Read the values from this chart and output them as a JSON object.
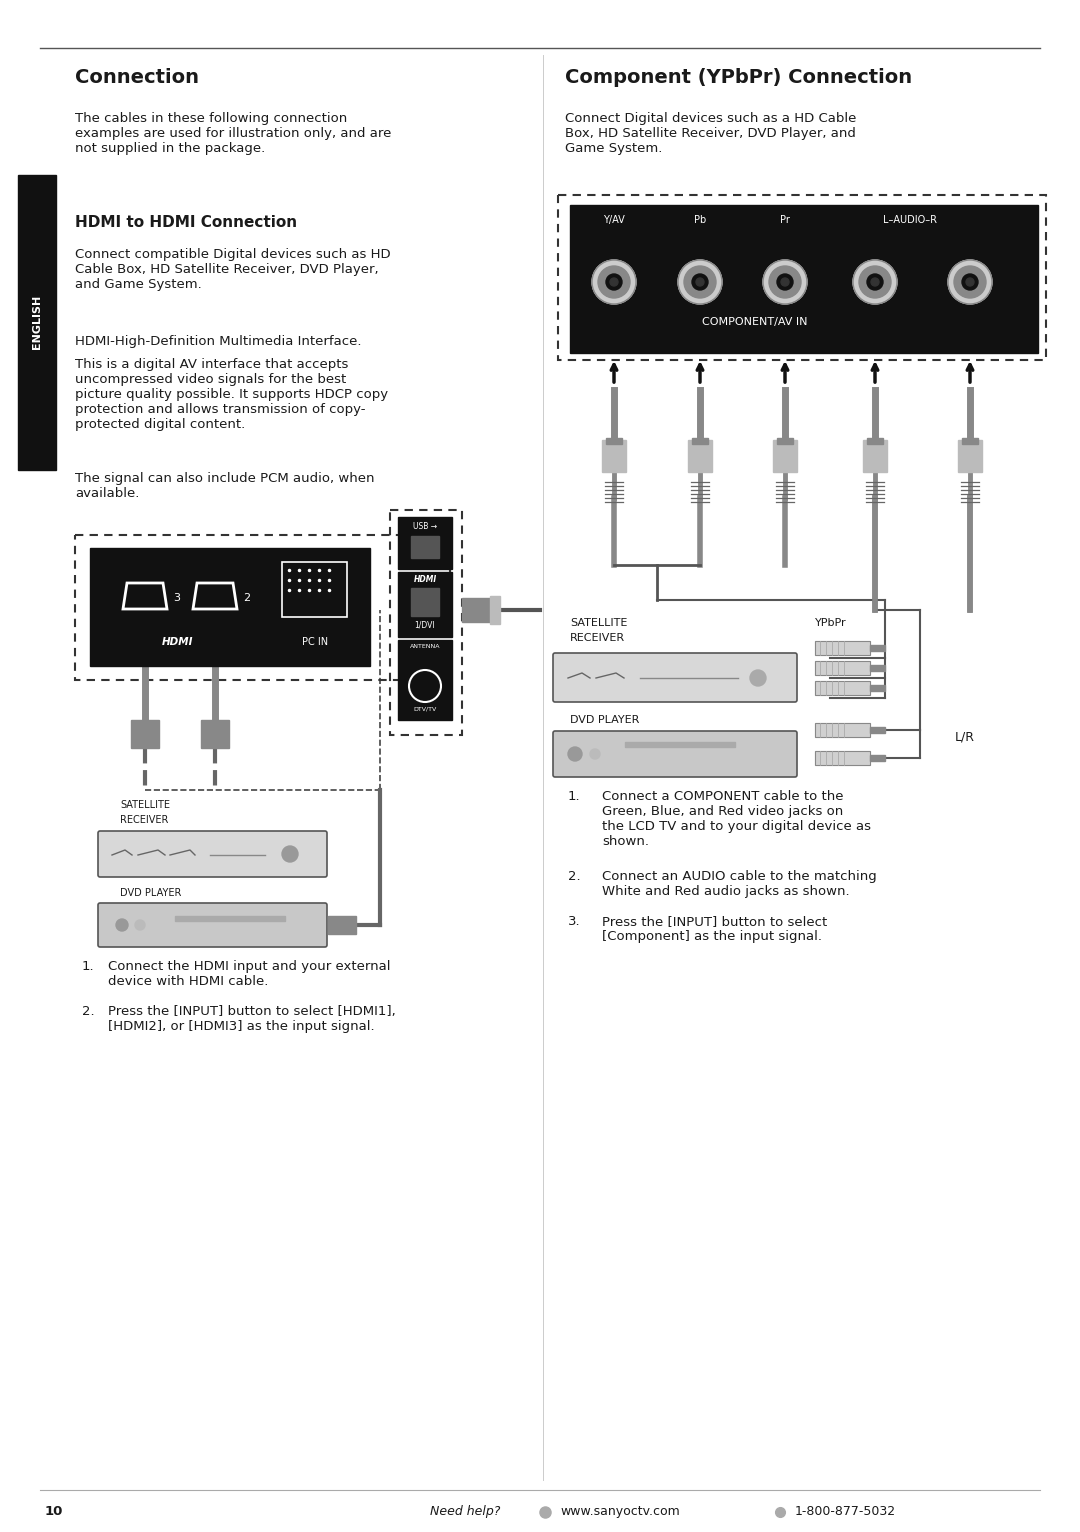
{
  "bg_color": "#ffffff",
  "text_color": "#1a1a1a",
  "page_width": 10.8,
  "page_height": 15.32,
  "sidebar_label": "ENGLISH",
  "section1_title": "Connection",
  "section1_para1": "The cables in these following connection\nexamples are used for illustration only, and are\nnot supplied in the package.",
  "hdmi_subtitle": "HDMI to HDMI Connection",
  "hdmi_para1": "Connect compatible Digital devices such as HD\nCable Box, HD Satellite Receiver, DVD Player,\nand Game System.",
  "hdmi_para2": "HDMI-High-Definition Multimedia Interface.",
  "hdmi_para3": "This is a digital AV interface that accepts\nuncompressed video signals for the best\npicture quality possible. It supports HDCP copy\nprotection and allows transmission of copy-\nprotected digital content.",
  "hdmi_para4": "The signal can also include PCM audio, when\navailable.",
  "hdmi_step1": "Connect the HDMI input and your external\ndevice with HDMI cable.",
  "hdmi_step2": "Press the [INPUT] button to select [HDMI1],\n[HDMI2], or [HDMI3] as the input signal.",
  "section2_title": "Component (YPbPr) Connection",
  "section2_para1": "Connect Digital devices such as a HD Cable\nBox, HD Satellite Receiver, DVD Player, and\nGame System.",
  "comp_step1": "Connect a COMPONENT cable to the\nGreen, Blue, and Red video jacks on\nthe LCD TV and to your digital device as\nshown.",
  "comp_step2": "Connect an AUDIO cable to the matching\nWhite and Red audio jacks as shown.",
  "comp_step3": "Press the [INPUT] button to select\n[Component] as the input signal.",
  "footer_page": "10",
  "footer_help": "Need help?",
  "footer_url": "www.sanyoctv.com",
  "footer_phone": "1-800-877-5032"
}
